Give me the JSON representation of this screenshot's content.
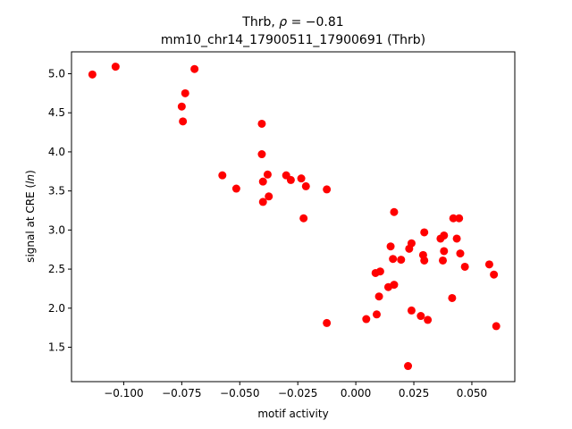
{
  "chart_data": {
    "type": "scatter",
    "title_line1_prefix": "Thrb, ",
    "title_rho_symbol": "ρ",
    "title_rho_value": " = −0.81",
    "title_line2": "mm10_chr14_17900511_17900691 (Thrb)",
    "xlabel": "motif activity",
    "ylabel_prefix": "signal at CRE (",
    "ylabel_italic": "ln",
    "ylabel_suffix": ")",
    "xlim": [
      -0.1225,
      0.0685
    ],
    "ylim": [
      1.06,
      5.28
    ],
    "xticks": [
      -0.1,
      -0.075,
      -0.05,
      -0.025,
      0.0,
      0.025,
      0.05
    ],
    "xtick_labels": [
      "−0.100",
      "−0.075",
      "−0.050",
      "−0.025",
      "0.000",
      "0.025",
      "0.050"
    ],
    "yticks": [
      1.5,
      2.0,
      2.5,
      3.0,
      3.5,
      4.0,
      4.5,
      5.0
    ],
    "ytick_labels": [
      "1.5",
      "2.0",
      "2.5",
      "3.0",
      "3.5",
      "4.0",
      "4.5",
      "5.0"
    ],
    "marker_color": "#ff0000",
    "grid": false,
    "points": [
      {
        "x": -0.1135,
        "y": 4.99
      },
      {
        "x": -0.1035,
        "y": 5.09
      },
      {
        "x": -0.0695,
        "y": 5.06
      },
      {
        "x": -0.0735,
        "y": 4.75
      },
      {
        "x": -0.075,
        "y": 4.58
      },
      {
        "x": -0.0745,
        "y": 4.39
      },
      {
        "x": -0.0405,
        "y": 4.36
      },
      {
        "x": -0.0405,
        "y": 3.97
      },
      {
        "x": -0.0575,
        "y": 3.7
      },
      {
        "x": -0.0515,
        "y": 3.53
      },
      {
        "x": -0.038,
        "y": 3.71
      },
      {
        "x": -0.04,
        "y": 3.62
      },
      {
        "x": -0.03,
        "y": 3.7
      },
      {
        "x": -0.028,
        "y": 3.64
      },
      {
        "x": -0.0235,
        "y": 3.66
      },
      {
        "x": -0.0215,
        "y": 3.56
      },
      {
        "x": -0.0375,
        "y": 3.43
      },
      {
        "x": -0.04,
        "y": 3.36
      },
      {
        "x": -0.0225,
        "y": 3.15
      },
      {
        "x": -0.0125,
        "y": 3.52
      },
      {
        "x": -0.0125,
        "y": 1.81
      },
      {
        "x": 0.0165,
        "y": 3.23
      },
      {
        "x": 0.0045,
        "y": 1.86
      },
      {
        "x": 0.009,
        "y": 1.92
      },
      {
        "x": 0.0085,
        "y": 2.45
      },
      {
        "x": 0.0105,
        "y": 2.47
      },
      {
        "x": 0.014,
        "y": 2.27
      },
      {
        "x": 0.0165,
        "y": 2.3
      },
      {
        "x": 0.01,
        "y": 2.15
      },
      {
        "x": 0.015,
        "y": 2.79
      },
      {
        "x": 0.016,
        "y": 2.63
      },
      {
        "x": 0.0195,
        "y": 2.62
      },
      {
        "x": 0.023,
        "y": 2.76
      },
      {
        "x": 0.024,
        "y": 2.83
      },
      {
        "x": 0.0295,
        "y": 2.97
      },
      {
        "x": 0.029,
        "y": 2.68
      },
      {
        "x": 0.0295,
        "y": 2.61
      },
      {
        "x": 0.024,
        "y": 1.97
      },
      {
        "x": 0.028,
        "y": 1.9
      },
      {
        "x": 0.031,
        "y": 1.85
      },
      {
        "x": 0.0225,
        "y": 1.26
      },
      {
        "x": 0.0365,
        "y": 2.89
      },
      {
        "x": 0.038,
        "y": 2.93
      },
      {
        "x": 0.038,
        "y": 2.73
      },
      {
        "x": 0.0375,
        "y": 2.61
      },
      {
        "x": 0.042,
        "y": 3.15
      },
      {
        "x": 0.0445,
        "y": 3.15
      },
      {
        "x": 0.0435,
        "y": 2.89
      },
      {
        "x": 0.045,
        "y": 2.7
      },
      {
        "x": 0.047,
        "y": 2.53
      },
      {
        "x": 0.0415,
        "y": 2.13
      },
      {
        "x": 0.0575,
        "y": 2.56
      },
      {
        "x": 0.0595,
        "y": 2.43
      },
      {
        "x": 0.0605,
        "y": 1.77
      }
    ]
  }
}
